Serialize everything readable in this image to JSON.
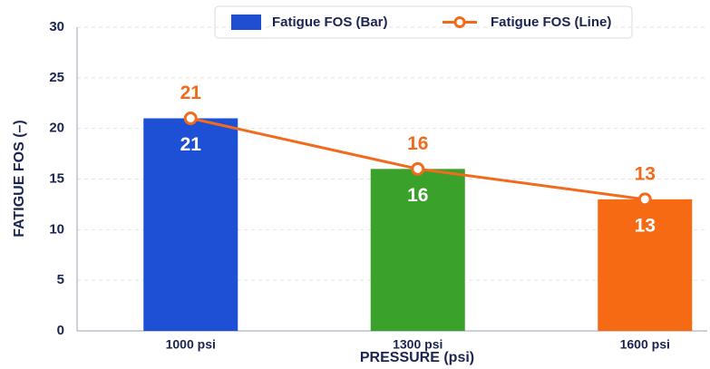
{
  "chart_data": {
    "type": "bar",
    "categories": [
      "1000 psi",
      "1300 psi",
      "1600 psi"
    ],
    "series": [
      {
        "name": "Fatigue FOS (Bar)",
        "type": "bar",
        "color": "#1f4fd0",
        "colors": [
          "#1e50d6",
          "#3aa12a",
          "#f56a12"
        ],
        "values": [
          21,
          16,
          13
        ]
      },
      {
        "name": "Fatigue FOS (Line)",
        "type": "line",
        "color": "#f26b1d",
        "values": [
          21,
          16,
          13
        ]
      }
    ],
    "xlabel": "PRESSURE (psi)",
    "ylabel": "FATIGUE FOS (–)",
    "ylim": [
      0,
      30
    ],
    "yticks": [
      0,
      5,
      10,
      15,
      20,
      25,
      30
    ],
    "grid": true,
    "legend": "top"
  }
}
